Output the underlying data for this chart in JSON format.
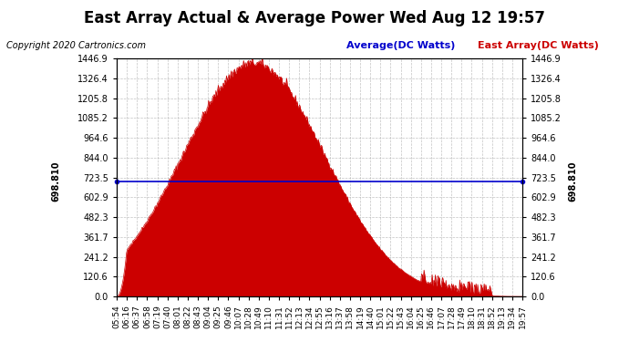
{
  "title": "East Array Actual & Average Power Wed Aug 12 19:57",
  "copyright": "Copyright 2020 Cartronics.com",
  "legend_avg": "Average(DC Watts)",
  "legend_east": "East Array(DC Watts)",
  "avg_value": 698.81,
  "ymax": 1446.9,
  "yticks": [
    0.0,
    120.6,
    241.2,
    361.7,
    482.3,
    602.9,
    723.5,
    844.0,
    964.6,
    1085.2,
    1205.8,
    1326.4,
    1446.9
  ],
  "background_color": "#ffffff",
  "fill_color": "#cc0000",
  "avg_line_color": "#0000cc",
  "grid_color": "#aaaaaa",
  "title_color": "#000000",
  "copyright_color": "#000000",
  "avg_label_color": "#0000cc",
  "east_label_color": "#cc0000",
  "times": [
    "05:54",
    "06:16",
    "06:37",
    "06:58",
    "07:19",
    "07:40",
    "08:01",
    "08:22",
    "08:43",
    "09:04",
    "09:25",
    "09:46",
    "10:07",
    "10:28",
    "10:49",
    "11:10",
    "11:31",
    "11:52",
    "12:13",
    "12:34",
    "12:55",
    "13:16",
    "13:37",
    "13:58",
    "14:19",
    "14:40",
    "15:01",
    "15:22",
    "15:43",
    "16:04",
    "16:25",
    "16:46",
    "17:07",
    "17:28",
    "17:49",
    "18:10",
    "18:31",
    "18:52",
    "19:13",
    "19:34",
    "19:57"
  ],
  "n_points": 500
}
